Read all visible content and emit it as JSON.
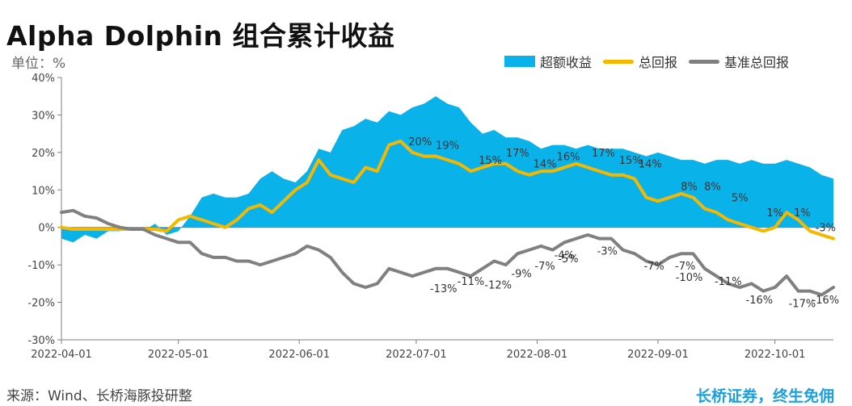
{
  "title": "Alpha Dolphin 组合累计收益",
  "unit_label": "单位：%",
  "source": "来源：Wind、长桥海豚投研整",
  "slogan": "长桥证券，终生免佣",
  "colors": {
    "excess": "#0ab2ea",
    "total": "#f5b800",
    "benchmark": "#808080",
    "axis": "#7f7f7f"
  },
  "legend": [
    {
      "name": "超额收益",
      "kind": "area",
      "color": "#0ab2ea"
    },
    {
      "name": "总回报",
      "kind": "line",
      "color": "#f5b800"
    },
    {
      "name": "基准总回报",
      "kind": "line",
      "color": "#808080"
    }
  ],
  "chart_data": {
    "type": "area+line",
    "title": "Alpha Dolphin 组合累计收益",
    "ylabel": "单位：%",
    "ylim": [
      -30,
      40
    ],
    "yticks": [
      40,
      30,
      20,
      10,
      0,
      -10,
      -20,
      -30
    ],
    "ytick_labels": [
      "40%",
      "30%",
      "20%",
      "10%",
      "0%",
      "-10%",
      "-20%",
      "-30%"
    ],
    "xlim": [
      "2022-04-01",
      "2022-10-16"
    ],
    "xtick_dates": [
      "2022-04-01",
      "2022-05-01",
      "2022-06-01",
      "2022-07-01",
      "2022-08-01",
      "2022-09-01",
      "2022-10-01"
    ],
    "xtick_labels": [
      "2022-04-01",
      "2022-05-01",
      "2022-06-01",
      "2022-07-01",
      "2022-08-01",
      "2022-09-01",
      "2022-10-01"
    ],
    "legend_position": "top-right",
    "grid": false,
    "series": [
      {
        "name": "超额收益",
        "kind": "area",
        "points": [
          [
            "2022-04-01",
            -3
          ],
          [
            "2022-04-04",
            -4
          ],
          [
            "2022-04-07",
            -2
          ],
          [
            "2022-04-10",
            -3
          ],
          [
            "2022-04-13",
            -1
          ],
          [
            "2022-04-16",
            -1
          ],
          [
            "2022-04-19",
            0
          ],
          [
            "2022-04-22",
            -1
          ],
          [
            "2022-04-25",
            1
          ],
          [
            "2022-04-28",
            -2
          ],
          [
            "2022-05-01",
            -1
          ],
          [
            "2022-05-04",
            3
          ],
          [
            "2022-05-07",
            8
          ],
          [
            "2022-05-10",
            9
          ],
          [
            "2022-05-13",
            8
          ],
          [
            "2022-05-16",
            8
          ],
          [
            "2022-05-19",
            9
          ],
          [
            "2022-05-22",
            13
          ],
          [
            "2022-05-25",
            15
          ],
          [
            "2022-05-28",
            13
          ],
          [
            "2022-05-31",
            12
          ],
          [
            "2022-06-03",
            15
          ],
          [
            "2022-06-06",
            21
          ],
          [
            "2022-06-09",
            20
          ],
          [
            "2022-06-12",
            26
          ],
          [
            "2022-06-15",
            27
          ],
          [
            "2022-06-18",
            29
          ],
          [
            "2022-06-21",
            28
          ],
          [
            "2022-06-24",
            31
          ],
          [
            "2022-06-27",
            30
          ],
          [
            "2022-06-30",
            32
          ],
          [
            "2022-07-03",
            33
          ],
          [
            "2022-07-06",
            35
          ],
          [
            "2022-07-09",
            33
          ],
          [
            "2022-07-12",
            32
          ],
          [
            "2022-07-15",
            28
          ],
          [
            "2022-07-18",
            25
          ],
          [
            "2022-07-21",
            26
          ],
          [
            "2022-07-24",
            24
          ],
          [
            "2022-07-27",
            24
          ],
          [
            "2022-07-30",
            23
          ],
          [
            "2022-08-02",
            21
          ],
          [
            "2022-08-05",
            22
          ],
          [
            "2022-08-08",
            22
          ],
          [
            "2022-08-11",
            21
          ],
          [
            "2022-08-14",
            22
          ],
          [
            "2022-08-17",
            21
          ],
          [
            "2022-08-20",
            21
          ],
          [
            "2022-08-23",
            21
          ],
          [
            "2022-08-26",
            20
          ],
          [
            "2022-08-29",
            19
          ],
          [
            "2022-09-01",
            20
          ],
          [
            "2022-09-04",
            19
          ],
          [
            "2022-09-07",
            18
          ],
          [
            "2022-09-10",
            18
          ],
          [
            "2022-09-13",
            17
          ],
          [
            "2022-09-16",
            18
          ],
          [
            "2022-09-19",
            18
          ],
          [
            "2022-09-22",
            17
          ],
          [
            "2022-09-25",
            18
          ],
          [
            "2022-09-28",
            17
          ],
          [
            "2022-10-01",
            17
          ],
          [
            "2022-10-04",
            18
          ],
          [
            "2022-10-07",
            17
          ],
          [
            "2022-10-10",
            16
          ],
          [
            "2022-10-13",
            14
          ],
          [
            "2022-10-16",
            13
          ]
        ]
      },
      {
        "name": "总回报",
        "kind": "line",
        "points": [
          [
            "2022-04-01",
            0
          ],
          [
            "2022-04-04",
            -0.5
          ],
          [
            "2022-04-07",
            -0.5
          ],
          [
            "2022-04-10",
            -0.5
          ],
          [
            "2022-04-13",
            -0.5
          ],
          [
            "2022-04-16",
            -0.5
          ],
          [
            "2022-04-19",
            -0.5
          ],
          [
            "2022-04-22",
            -0.5
          ],
          [
            "2022-04-25",
            -0.5
          ],
          [
            "2022-04-28",
            -1
          ],
          [
            "2022-05-01",
            2
          ],
          [
            "2022-05-04",
            3
          ],
          [
            "2022-05-07",
            2
          ],
          [
            "2022-05-10",
            1
          ],
          [
            "2022-05-13",
            0
          ],
          [
            "2022-05-16",
            2
          ],
          [
            "2022-05-19",
            5
          ],
          [
            "2022-05-22",
            6
          ],
          [
            "2022-05-25",
            4
          ],
          [
            "2022-05-28",
            7
          ],
          [
            "2022-05-31",
            10
          ],
          [
            "2022-06-03",
            12
          ],
          [
            "2022-06-06",
            18
          ],
          [
            "2022-06-09",
            14
          ],
          [
            "2022-06-12",
            13
          ],
          [
            "2022-06-15",
            12
          ],
          [
            "2022-06-18",
            16
          ],
          [
            "2022-06-21",
            15
          ],
          [
            "2022-06-24",
            22
          ],
          [
            "2022-06-27",
            23
          ],
          [
            "2022-06-30",
            20
          ],
          [
            "2022-07-03",
            19
          ],
          [
            "2022-07-06",
            19
          ],
          [
            "2022-07-09",
            18
          ],
          [
            "2022-07-12",
            17
          ],
          [
            "2022-07-15",
            15
          ],
          [
            "2022-07-18",
            16
          ],
          [
            "2022-07-21",
            17
          ],
          [
            "2022-07-24",
            17
          ],
          [
            "2022-07-27",
            15
          ],
          [
            "2022-07-30",
            14
          ],
          [
            "2022-08-02",
            15
          ],
          [
            "2022-08-05",
            15
          ],
          [
            "2022-08-08",
            16
          ],
          [
            "2022-08-11",
            17
          ],
          [
            "2022-08-14",
            16
          ],
          [
            "2022-08-17",
            15
          ],
          [
            "2022-08-20",
            14
          ],
          [
            "2022-08-23",
            14
          ],
          [
            "2022-08-26",
            13
          ],
          [
            "2022-08-29",
            8
          ],
          [
            "2022-09-01",
            7
          ],
          [
            "2022-09-04",
            8
          ],
          [
            "2022-09-07",
            9
          ],
          [
            "2022-09-10",
            8
          ],
          [
            "2022-09-13",
            5
          ],
          [
            "2022-09-16",
            4
          ],
          [
            "2022-09-19",
            2
          ],
          [
            "2022-09-22",
            1
          ],
          [
            "2022-09-25",
            0
          ],
          [
            "2022-09-28",
            -1
          ],
          [
            "2022-10-01",
            0
          ],
          [
            "2022-10-04",
            4
          ],
          [
            "2022-10-07",
            2
          ],
          [
            "2022-10-10",
            -1
          ],
          [
            "2022-10-13",
            -2
          ],
          [
            "2022-10-16",
            -3
          ]
        ]
      },
      {
        "name": "基准总回报",
        "kind": "line",
        "points": [
          [
            "2022-04-01",
            4
          ],
          [
            "2022-04-04",
            4.5
          ],
          [
            "2022-04-07",
            3
          ],
          [
            "2022-04-10",
            2.5
          ],
          [
            "2022-04-13",
            1
          ],
          [
            "2022-04-16",
            0
          ],
          [
            "2022-04-19",
            -0.5
          ],
          [
            "2022-04-22",
            -0.5
          ],
          [
            "2022-04-25",
            -2
          ],
          [
            "2022-04-28",
            -3
          ],
          [
            "2022-05-01",
            -4
          ],
          [
            "2022-05-04",
            -4
          ],
          [
            "2022-05-07",
            -7
          ],
          [
            "2022-05-10",
            -8
          ],
          [
            "2022-05-13",
            -8
          ],
          [
            "2022-05-16",
            -9
          ],
          [
            "2022-05-19",
            -9
          ],
          [
            "2022-05-22",
            -10
          ],
          [
            "2022-05-25",
            -9
          ],
          [
            "2022-05-28",
            -8
          ],
          [
            "2022-05-31",
            -7
          ],
          [
            "2022-06-03",
            -5
          ],
          [
            "2022-06-06",
            -6
          ],
          [
            "2022-06-09",
            -8
          ],
          [
            "2022-06-12",
            -12
          ],
          [
            "2022-06-15",
            -15
          ],
          [
            "2022-06-18",
            -16
          ],
          [
            "2022-06-21",
            -15
          ],
          [
            "2022-06-24",
            -11
          ],
          [
            "2022-06-27",
            -12
          ],
          [
            "2022-06-30",
            -13
          ],
          [
            "2022-07-03",
            -12
          ],
          [
            "2022-07-06",
            -11
          ],
          [
            "2022-07-09",
            -11
          ],
          [
            "2022-07-12",
            -12
          ],
          [
            "2022-07-15",
            -13
          ],
          [
            "2022-07-18",
            -11
          ],
          [
            "2022-07-21",
            -9
          ],
          [
            "2022-07-24",
            -10
          ],
          [
            "2022-07-27",
            -7
          ],
          [
            "2022-07-30",
            -6
          ],
          [
            "2022-08-02",
            -5
          ],
          [
            "2022-08-05",
            -6
          ],
          [
            "2022-08-08",
            -4
          ],
          [
            "2022-08-11",
            -3
          ],
          [
            "2022-08-14",
            -2
          ],
          [
            "2022-08-17",
            -3
          ],
          [
            "2022-08-20",
            -3
          ],
          [
            "2022-08-23",
            -6
          ],
          [
            "2022-08-26",
            -7
          ],
          [
            "2022-08-29",
            -9
          ],
          [
            "2022-09-01",
            -10
          ],
          [
            "2022-09-04",
            -8
          ],
          [
            "2022-09-07",
            -7
          ],
          [
            "2022-09-10",
            -7
          ],
          [
            "2022-09-13",
            -11
          ],
          [
            "2022-09-16",
            -13
          ],
          [
            "2022-09-19",
            -15
          ],
          [
            "2022-09-22",
            -16
          ],
          [
            "2022-09-25",
            -15
          ],
          [
            "2022-09-28",
            -17
          ],
          [
            "2022-10-01",
            -16
          ],
          [
            "2022-10-04",
            -13
          ],
          [
            "2022-10-07",
            -17
          ],
          [
            "2022-10-10",
            -17
          ],
          [
            "2022-10-13",
            -18
          ],
          [
            "2022-10-16",
            -16
          ]
        ]
      }
    ],
    "annotations_total": [
      {
        "date": "2022-07-02",
        "value": 20,
        "text": "20%"
      },
      {
        "date": "2022-07-09",
        "value": 19,
        "text": "19%"
      },
      {
        "date": "2022-07-20",
        "value": 15,
        "text": "15%"
      },
      {
        "date": "2022-07-27",
        "value": 17,
        "text": "17%"
      },
      {
        "date": "2022-08-03",
        "value": 14,
        "text": "14%"
      },
      {
        "date": "2022-08-09",
        "value": 16,
        "text": "16%"
      },
      {
        "date": "2022-08-18",
        "value": 17,
        "text": "17%"
      },
      {
        "date": "2022-08-25",
        "value": 15,
        "text": "15%"
      },
      {
        "date": "2022-08-30",
        "value": 14,
        "text": "14%"
      },
      {
        "date": "2022-09-09",
        "value": 8,
        "text": "8%"
      },
      {
        "date": "2022-09-15",
        "value": 8,
        "text": "8%"
      },
      {
        "date": "2022-09-22",
        "value": 5,
        "text": "5%"
      },
      {
        "date": "2022-10-01",
        "value": 1,
        "text": "1%"
      },
      {
        "date": "2022-10-08",
        "value": 1,
        "text": "1%"
      },
      {
        "date": "2022-10-14",
        "value": -3,
        "text": "-3%"
      }
    ],
    "annotations_benchmark": [
      {
        "date": "2022-07-08",
        "value": -13,
        "text": "-13%"
      },
      {
        "date": "2022-07-15",
        "value": -11,
        "text": "-11%"
      },
      {
        "date": "2022-07-22",
        "value": -12,
        "text": "-12%"
      },
      {
        "date": "2022-07-28",
        "value": -9,
        "text": "-9%"
      },
      {
        "date": "2022-08-03",
        "value": -7,
        "text": "-7%"
      },
      {
        "date": "2022-08-09",
        "value": -5,
        "text": "-5%"
      },
      {
        "date": "2022-08-08",
        "value": -4,
        "text": "-4%"
      },
      {
        "date": "2022-08-19",
        "value": -3,
        "text": "-3%"
      },
      {
        "date": "2022-08-31",
        "value": -7,
        "text": "-7%"
      },
      {
        "date": "2022-09-08",
        "value": -7,
        "text": "-7%"
      },
      {
        "date": "2022-09-09",
        "value": -10,
        "text": "-10%"
      },
      {
        "date": "2022-09-19",
        "value": -11,
        "text": "-11%"
      },
      {
        "date": "2022-09-27",
        "value": -16,
        "text": "-16%"
      },
      {
        "date": "2022-10-08",
        "value": -17,
        "text": "-17%"
      },
      {
        "date": "2022-10-14",
        "value": -16,
        "text": "-16%"
      }
    ]
  }
}
